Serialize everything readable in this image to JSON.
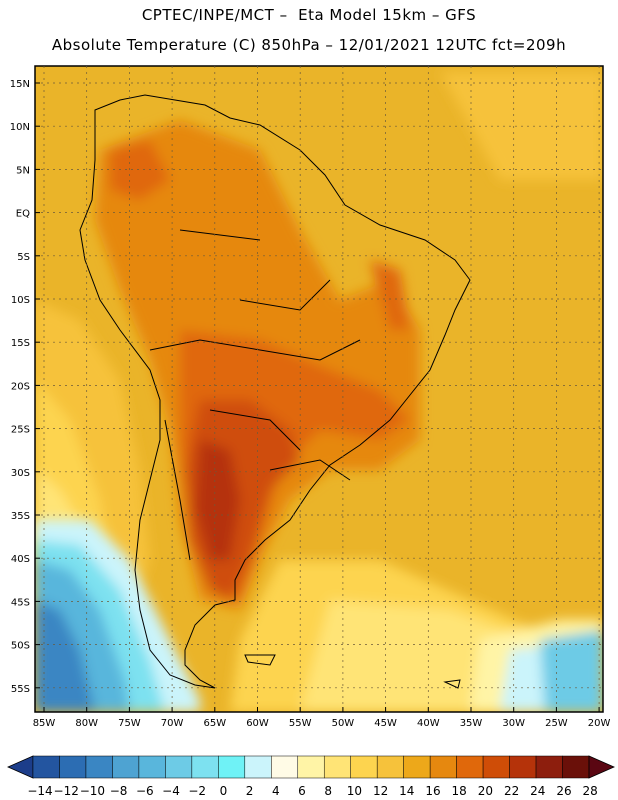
{
  "header": {
    "title_line1": "CPTEC/INPE/MCT –  Eta Model 15km – GFS",
    "title_line2": "Absolute Temperature (C) 850hPa – 12/01/2021 12UTC fct=209h"
  },
  "map": {
    "lat_labels": [
      "15N",
      "10N",
      "5N",
      "EQ",
      "5S",
      "10S",
      "15S",
      "20S",
      "25S",
      "30S",
      "35S",
      "40S",
      "45S",
      "50S",
      "55S"
    ],
    "lon_labels": [
      "85W",
      "80W",
      "75W",
      "70W",
      "65W",
      "60W",
      "55W",
      "50W",
      "45W",
      "40W",
      "35W",
      "30W",
      "25W",
      "20W"
    ],
    "projection_note": "lat/lon grid",
    "colors": {
      "warm_dominant": "#eab429",
      "hot_land": "#d9690b",
      "hottest": "#b8380a",
      "cold_ocean": "#52c6e4",
      "coastline": "#000000"
    }
  },
  "colorbar": {
    "labels": [
      "-14",
      "-12",
      "-10",
      "-8",
      "-6",
      "-4",
      "-2",
      "0",
      "2",
      "4",
      "6",
      "8",
      "10",
      "12",
      "14",
      "16",
      "18",
      "20",
      "22",
      "24",
      "26",
      "28"
    ],
    "colors": [
      "#1c3d8a",
      "#2355a0",
      "#2c6db3",
      "#3a86c3",
      "#4ea3d2",
      "#59b6dc",
      "#6dcbe6",
      "#7de1f0",
      "#6ff2f6",
      "#cbf4fb",
      "#fffbe6",
      "#fff4a6",
      "#ffe476",
      "#fdd44f",
      "#f6c23b",
      "#eda81a",
      "#e6880f",
      "#e0680b",
      "#cf4d07",
      "#b5330a",
      "#8d1e0d",
      "#6a1009",
      "#5a0612"
    ]
  }
}
